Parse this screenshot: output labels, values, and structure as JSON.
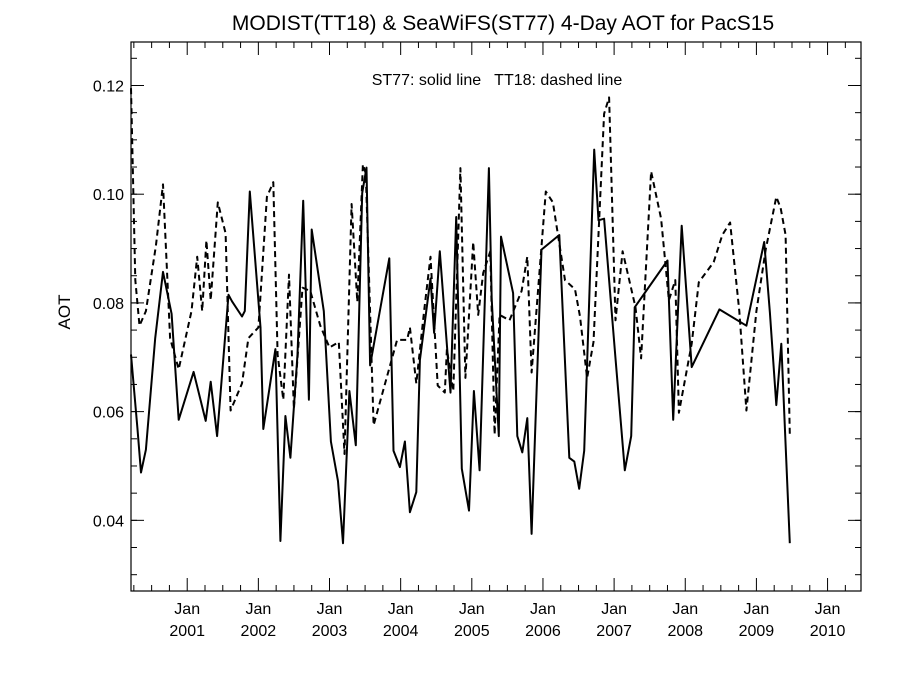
{
  "chart_data": {
    "type": "line",
    "title": "MODIST(TT18) & SeaWiFS(ST77) 4-Day AOT for PacS15",
    "ylabel": "AOT",
    "xlabel": "",
    "annotation": "ST77: solid line   TT18: dashed line",
    "ylim": [
      0.027,
      0.128
    ],
    "yticks": [
      0.04,
      0.06,
      0.08,
      0.1,
      0.12
    ],
    "ytick_labels": [
      "0.04",
      "0.06",
      "0.08",
      "0.10",
      "0.12"
    ],
    "xlim": [
      2000.21,
      2010.47
    ],
    "xticks": [
      {
        "x": 2001.0,
        "month": "Jan",
        "year": "2001"
      },
      {
        "x": 2002.0,
        "month": "Jan",
        "year": "2002"
      },
      {
        "x": 2003.0,
        "month": "Jan",
        "year": "2003"
      },
      {
        "x": 2004.0,
        "month": "Jan",
        "year": "2004"
      },
      {
        "x": 2005.0,
        "month": "Jan",
        "year": "2005"
      },
      {
        "x": 2006.0,
        "month": "Jan",
        "year": "2006"
      },
      {
        "x": 2007.0,
        "month": "Jan",
        "year": "2007"
      },
      {
        "x": 2008.0,
        "month": "Jan",
        "year": "2008"
      },
      {
        "x": 2009.0,
        "month": "Jan",
        "year": "2009"
      },
      {
        "x": 2010.0,
        "month": "Jan",
        "year": "2010"
      }
    ],
    "grid": false,
    "series": [
      {
        "name": "ST77",
        "style": "solid",
        "color": "#000000",
        "points": [
          [
            2000.21,
            0.0705
          ],
          [
            2000.3,
            0.057
          ],
          [
            2000.35,
            0.0488
          ],
          [
            2000.42,
            0.053
          ],
          [
            2000.55,
            0.0735
          ],
          [
            2000.66,
            0.0857
          ],
          [
            2000.78,
            0.078
          ],
          [
            2000.88,
            0.0585
          ],
          [
            2001.09,
            0.0673
          ],
          [
            2001.26,
            0.0583
          ],
          [
            2001.33,
            0.0655
          ],
          [
            2001.42,
            0.0555
          ],
          [
            2001.58,
            0.0815
          ],
          [
            2001.63,
            0.0803
          ],
          [
            2001.77,
            0.0775
          ],
          [
            2001.81,
            0.0785
          ],
          [
            2001.88,
            0.1005
          ],
          [
            2002.03,
            0.0755
          ],
          [
            2002.07,
            0.0568
          ],
          [
            2002.24,
            0.0715
          ],
          [
            2002.31,
            0.0362
          ],
          [
            2002.38,
            0.0592
          ],
          [
            2002.45,
            0.0515
          ],
          [
            2002.55,
            0.0705
          ],
          [
            2002.63,
            0.0988
          ],
          [
            2002.71,
            0.0622
          ],
          [
            2002.75,
            0.0935
          ],
          [
            2002.92,
            0.0785
          ],
          [
            2003.02,
            0.0545
          ],
          [
            2003.12,
            0.0472
          ],
          [
            2003.19,
            0.0358
          ],
          [
            2003.28,
            0.0638
          ],
          [
            2003.37,
            0.0538
          ],
          [
            2003.46,
            0.1002
          ],
          [
            2003.52,
            0.1049
          ],
          [
            2003.57,
            0.0685
          ],
          [
            2003.84,
            0.0882
          ],
          [
            2003.9,
            0.0528
          ],
          [
            2003.99,
            0.0498
          ],
          [
            2004.06,
            0.0545
          ],
          [
            2004.13,
            0.0415
          ],
          [
            2004.22,
            0.0452
          ],
          [
            2004.27,
            0.0695
          ],
          [
            2004.42,
            0.0845
          ],
          [
            2004.47,
            0.0745
          ],
          [
            2004.55,
            0.0895
          ],
          [
            2004.7,
            0.0635
          ],
          [
            2004.78,
            0.0958
          ],
          [
            2004.86,
            0.0495
          ],
          [
            2004.96,
            0.0418
          ],
          [
            2005.03,
            0.0638
          ],
          [
            2005.11,
            0.0492
          ],
          [
            2005.24,
            0.1048
          ],
          [
            2005.28,
            0.0808
          ],
          [
            2005.38,
            0.0555
          ],
          [
            2005.41,
            0.0922
          ],
          [
            2005.58,
            0.0818
          ],
          [
            2005.64,
            0.0555
          ],
          [
            2005.71,
            0.0525
          ],
          [
            2005.78,
            0.0588
          ],
          [
            2005.84,
            0.0375
          ],
          [
            2005.98,
            0.0898
          ],
          [
            2006.23,
            0.0925
          ],
          [
            2006.37,
            0.0515
          ],
          [
            2006.44,
            0.0508
          ],
          [
            2006.51,
            0.0458
          ],
          [
            2006.58,
            0.0528
          ],
          [
            2006.72,
            0.1082
          ],
          [
            2006.78,
            0.0952
          ],
          [
            2006.86,
            0.0955
          ],
          [
            2007.02,
            0.0698
          ],
          [
            2007.15,
            0.0492
          ],
          [
            2007.24,
            0.0555
          ],
          [
            2007.29,
            0.0792
          ],
          [
            2007.75,
            0.0878
          ],
          [
            2007.83,
            0.0585
          ],
          [
            2007.95,
            0.0942
          ],
          [
            2008.09,
            0.0682
          ],
          [
            2008.48,
            0.0788
          ],
          [
            2008.86,
            0.0758
          ],
          [
            2009.11,
            0.0912
          ],
          [
            2009.19,
            0.0782
          ],
          [
            2009.28,
            0.0612
          ],
          [
            2009.35,
            0.0725
          ],
          [
            2009.47,
            0.0358
          ]
        ]
      },
      {
        "name": "TT18",
        "style": "dashed",
        "color": "#000000",
        "points": [
          [
            2000.21,
            0.1195
          ],
          [
            2000.27,
            0.0842
          ],
          [
            2000.33,
            0.0758
          ],
          [
            2000.42,
            0.0785
          ],
          [
            2000.56,
            0.0905
          ],
          [
            2000.66,
            0.1018
          ],
          [
            2000.76,
            0.0735
          ],
          [
            2000.88,
            0.0678
          ],
          [
            2001.06,
            0.0785
          ],
          [
            2001.14,
            0.0885
          ],
          [
            2001.21,
            0.0785
          ],
          [
            2001.27,
            0.0915
          ],
          [
            2001.33,
            0.0805
          ],
          [
            2001.43,
            0.0985
          ],
          [
            2001.54,
            0.0928
          ],
          [
            2001.61,
            0.0602
          ],
          [
            2001.77,
            0.0652
          ],
          [
            2001.86,
            0.0735
          ],
          [
            2002.0,
            0.0755
          ],
          [
            2002.12,
            0.0995
          ],
          [
            2002.21,
            0.1022
          ],
          [
            2002.27,
            0.0705
          ],
          [
            2002.35,
            0.0622
          ],
          [
            2002.43,
            0.0852
          ],
          [
            2002.5,
            0.0605
          ],
          [
            2002.62,
            0.0828
          ],
          [
            2002.73,
            0.0822
          ],
          [
            2002.87,
            0.0758
          ],
          [
            2003.0,
            0.0718
          ],
          [
            2003.13,
            0.0728
          ],
          [
            2003.21,
            0.0522
          ],
          [
            2003.31,
            0.0982
          ],
          [
            2003.39,
            0.0802
          ],
          [
            2003.47,
            0.1055
          ],
          [
            2003.51,
            0.1038
          ],
          [
            2003.62,
            0.0575
          ],
          [
            2003.95,
            0.0732
          ],
          [
            2004.09,
            0.0732
          ],
          [
            2004.13,
            0.0755
          ],
          [
            2004.22,
            0.0652
          ],
          [
            2004.33,
            0.0785
          ],
          [
            2004.42,
            0.0885
          ],
          [
            2004.52,
            0.0648
          ],
          [
            2004.62,
            0.0635
          ],
          [
            2004.65,
            0.0715
          ],
          [
            2004.74,
            0.0638
          ],
          [
            2004.84,
            0.1048
          ],
          [
            2004.91,
            0.0662
          ],
          [
            2005.02,
            0.0912
          ],
          [
            2005.09,
            0.0778
          ],
          [
            2005.16,
            0.0855
          ],
          [
            2005.26,
            0.0895
          ],
          [
            2005.32,
            0.0558
          ],
          [
            2005.39,
            0.0778
          ],
          [
            2005.53,
            0.0768
          ],
          [
            2005.7,
            0.0822
          ],
          [
            2005.78,
            0.0885
          ],
          [
            2005.84,
            0.0672
          ],
          [
            2006.04,
            0.1005
          ],
          [
            2006.14,
            0.0985
          ],
          [
            2006.31,
            0.0842
          ],
          [
            2006.45,
            0.0825
          ],
          [
            2006.52,
            0.0775
          ],
          [
            2006.62,
            0.0662
          ],
          [
            2006.71,
            0.0728
          ],
          [
            2006.86,
            0.1148
          ],
          [
            2006.93,
            0.1178
          ],
          [
            2007.02,
            0.0768
          ],
          [
            2007.12,
            0.0895
          ],
          [
            2007.3,
            0.0792
          ],
          [
            2007.38,
            0.0698
          ],
          [
            2007.52,
            0.1042
          ],
          [
            2007.66,
            0.0955
          ],
          [
            2007.77,
            0.0805
          ],
          [
            2007.86,
            0.0842
          ],
          [
            2007.91,
            0.0598
          ],
          [
            2008.09,
            0.0725
          ],
          [
            2008.19,
            0.0838
          ],
          [
            2008.4,
            0.0875
          ],
          [
            2008.52,
            0.0925
          ],
          [
            2008.63,
            0.0948
          ],
          [
            2008.76,
            0.0785
          ],
          [
            2008.86,
            0.0602
          ],
          [
            2009.0,
            0.0785
          ],
          [
            2009.13,
            0.0898
          ],
          [
            2009.28,
            0.0995
          ],
          [
            2009.34,
            0.0975
          ],
          [
            2009.41,
            0.0925
          ],
          [
            2009.47,
            0.0558
          ]
        ]
      }
    ]
  }
}
